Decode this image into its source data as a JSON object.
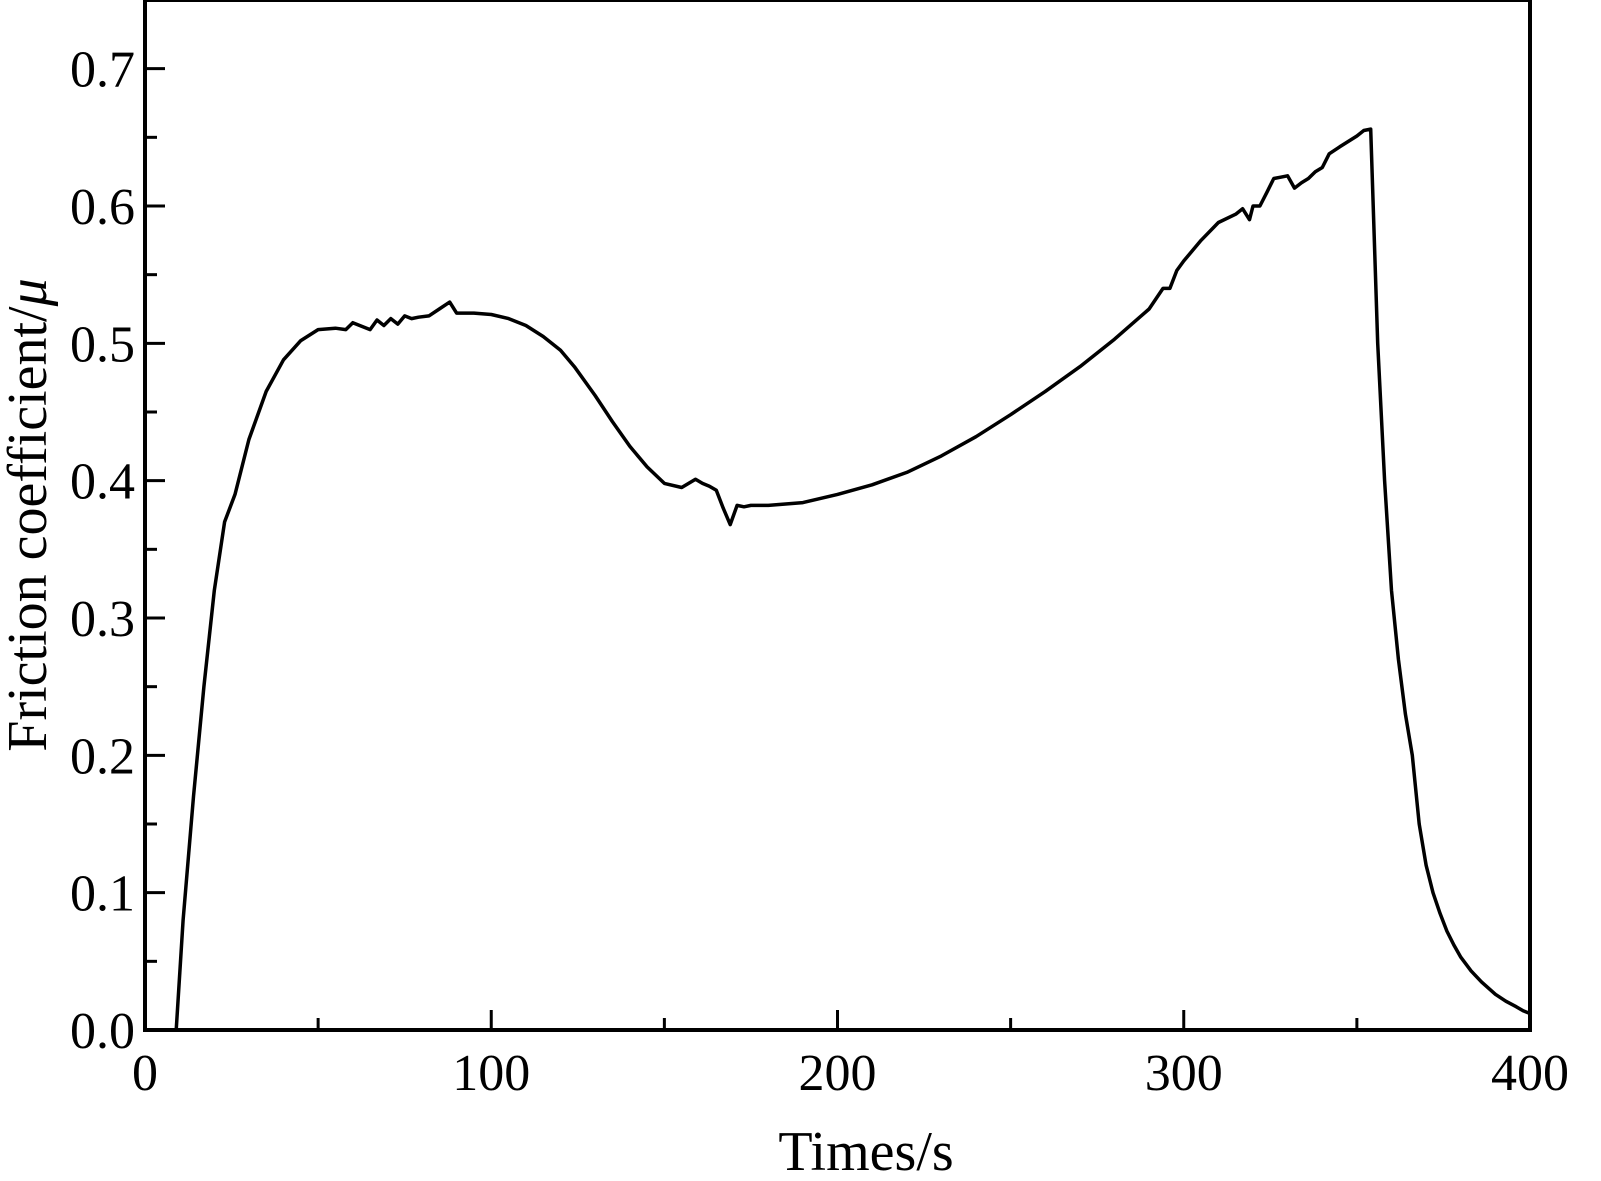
{
  "chart_data": {
    "type": "line",
    "title": "",
    "xlabel": "Times/s",
    "ylabel_text": "Friction coefficient/",
    "ylabel_symbol": "μ",
    "xlim": [
      0,
      400
    ],
    "ylim": [
      0,
      0.75
    ],
    "x_ticks": [
      0,
      100,
      200,
      300,
      400
    ],
    "x_tick_labels": [
      "0",
      "100",
      "200",
      "300",
      "400"
    ],
    "y_ticks": [
      0.0,
      0.1,
      0.2,
      0.3,
      0.4,
      0.5,
      0.6,
      0.7
    ],
    "y_tick_labels": [
      "0.0",
      "0.1",
      "0.2",
      "0.3",
      "0.4",
      "0.5",
      "0.6",
      "0.7"
    ],
    "grid": false,
    "line_color": "#000000",
    "series": [
      {
        "x": [
          9,
          11,
          14,
          17,
          20,
          23,
          26,
          30,
          35,
          40,
          45,
          50,
          55,
          58,
          60,
          62,
          65,
          67,
          69,
          71,
          73,
          75,
          77,
          79,
          82,
          85,
          88,
          90,
          92,
          95,
          100,
          105,
          110,
          115,
          120,
          124,
          130,
          135,
          140,
          145,
          150,
          155,
          157,
          159,
          161,
          163,
          165,
          167,
          169,
          171,
          173,
          175,
          180,
          190,
          200,
          210,
          220,
          230,
          240,
          250,
          260,
          270,
          280,
          290,
          294,
          296,
          298,
          300,
          305,
          310,
          315,
          317,
          319,
          320,
          322,
          324,
          326,
          328,
          330,
          332,
          334,
          336,
          338,
          340,
          342,
          345,
          350,
          352,
          354,
          356,
          358,
          360,
          362,
          364,
          366,
          368,
          370,
          372,
          374,
          376,
          378,
          380,
          383,
          386,
          390,
          393,
          396,
          398,
          400
        ],
        "y": [
          0.0,
          0.08,
          0.17,
          0.25,
          0.32,
          0.37,
          0.39,
          0.43,
          0.465,
          0.488,
          0.502,
          0.51,
          0.511,
          0.51,
          0.515,
          0.513,
          0.51,
          0.517,
          0.513,
          0.518,
          0.514,
          0.52,
          0.518,
          0.519,
          0.52,
          0.525,
          0.53,
          0.522,
          0.522,
          0.522,
          0.521,
          0.518,
          0.513,
          0.505,
          0.495,
          0.483,
          0.462,
          0.443,
          0.425,
          0.41,
          0.398,
          0.395,
          0.398,
          0.401,
          0.398,
          0.396,
          0.393,
          0.38,
          0.368,
          0.382,
          0.381,
          0.382,
          0.382,
          0.384,
          0.39,
          0.397,
          0.406,
          0.418,
          0.432,
          0.448,
          0.465,
          0.483,
          0.503,
          0.525,
          0.54,
          0.54,
          0.553,
          0.56,
          0.575,
          0.588,
          0.594,
          0.598,
          0.59,
          0.6,
          0.6,
          0.61,
          0.62,
          0.621,
          0.622,
          0.613,
          0.617,
          0.62,
          0.625,
          0.628,
          0.638,
          0.643,
          0.651,
          0.655,
          0.656,
          0.5,
          0.4,
          0.32,
          0.27,
          0.23,
          0.2,
          0.15,
          0.12,
          0.1,
          0.085,
          0.072,
          0.062,
          0.053,
          0.043,
          0.035,
          0.026,
          0.021,
          0.017,
          0.014,
          0.012
        ]
      }
    ]
  }
}
